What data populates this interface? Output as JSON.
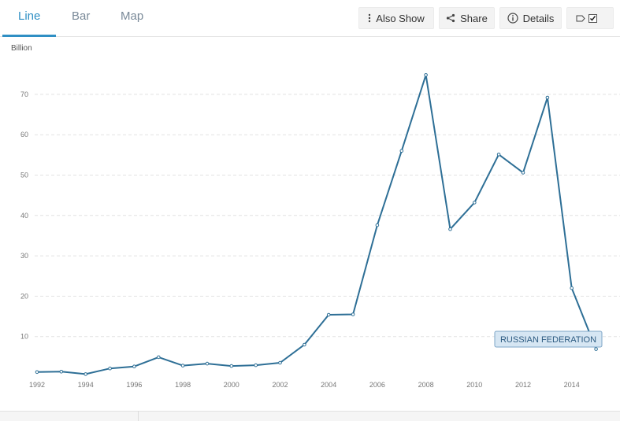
{
  "tabs": [
    {
      "label": "Line",
      "active": true
    },
    {
      "label": "Bar",
      "active": false
    },
    {
      "label": "Map",
      "active": false
    }
  ],
  "toolbar": {
    "also_show_label": "Also Show",
    "share_label": "Share",
    "details_label": "Details"
  },
  "colors": {
    "accent": "#2f8fc4",
    "line": "#2e6f96",
    "legend_bg": "#d6e6f3",
    "legend_border": "#7ea6c7"
  },
  "chart_data": {
    "type": "line",
    "ylabel": "Billion",
    "ylim": [
      0,
      80
    ],
    "yticks": [
      10,
      20,
      30,
      40,
      50,
      60,
      70
    ],
    "xlim": [
      1992,
      2016
    ],
    "xticks": [
      "1992",
      "1994",
      "1996",
      "1998",
      "2000",
      "2002",
      "2004",
      "2006",
      "2008",
      "2010",
      "2012",
      "2014"
    ],
    "grid": true,
    "series": [
      {
        "name": "RUSSIAN FEDERATION",
        "x": [
          1992,
          1993,
          1994,
          1995,
          1996,
          1997,
          1998,
          1999,
          2000,
          2001,
          2002,
          2003,
          2004,
          2005,
          2006,
          2007,
          2008,
          2009,
          2010,
          2011,
          2012,
          2013,
          2014,
          2015
        ],
        "values": [
          1.2,
          1.3,
          0.7,
          2.1,
          2.6,
          4.9,
          2.8,
          3.3,
          2.7,
          2.9,
          3.5,
          8.0,
          15.4,
          15.5,
          37.6,
          56.0,
          74.8,
          36.6,
          43.2,
          55.1,
          50.6,
          69.2,
          22.0,
          6.9
        ]
      }
    ]
  }
}
